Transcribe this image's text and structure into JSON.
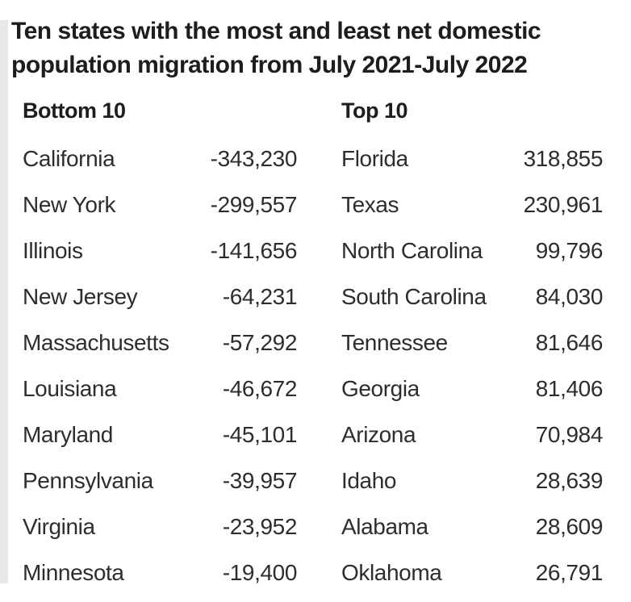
{
  "title": "Ten states with the most and least net domestic population migration from July 2021-July 2022",
  "table": {
    "left": {
      "header": "Bottom 10",
      "rows": [
        {
          "state": "California",
          "value": "-343,230"
        },
        {
          "state": "New York",
          "value": "-299,557"
        },
        {
          "state": "Illinois",
          "value": "-141,656"
        },
        {
          "state": "New Jersey",
          "value": "-64,231"
        },
        {
          "state": "Massachusetts",
          "value": "-57,292"
        },
        {
          "state": "Louisiana",
          "value": "-46,672"
        },
        {
          "state": "Maryland",
          "value": "-45,101"
        },
        {
          "state": "Pennsylvania",
          "value": "-39,957"
        },
        {
          "state": "Virginia",
          "value": "-23,952"
        },
        {
          "state": "Minnesota",
          "value": "-19,400"
        }
      ]
    },
    "right": {
      "header": "Top 10",
      "rows": [
        {
          "state": "Florida",
          "value": "318,855"
        },
        {
          "state": "Texas",
          "value": "230,961"
        },
        {
          "state": "North Carolina",
          "value": "99,796"
        },
        {
          "state": "South Carolina",
          "value": "84,030"
        },
        {
          "state": "Tennessee",
          "value": "81,646"
        },
        {
          "state": "Georgia",
          "value": "81,406"
        },
        {
          "state": "Arizona",
          "value": "70,984"
        },
        {
          "state": "Idaho",
          "value": "28,639"
        },
        {
          "state": "Alabama",
          "value": "28,609"
        },
        {
          "state": "Oklahoma",
          "value": "26,791"
        }
      ]
    }
  },
  "colors": {
    "background": "#ffffff",
    "left_strip": "#e9e8e8",
    "title_text": "#1d1d1d",
    "body_text": "#2d2d2d"
  },
  "chart_data": {
    "type": "table",
    "title": "Ten states with the most and least net domestic population migration from July 2021-July 2022",
    "columns": [
      "Bottom 10",
      "Top 10"
    ],
    "bottom_10": [
      [
        "California",
        -343230
      ],
      [
        "New York",
        -299557
      ],
      [
        "Illinois",
        -141656
      ],
      [
        "New Jersey",
        -64231
      ],
      [
        "Massachusetts",
        -57292
      ],
      [
        "Louisiana",
        -46672
      ],
      [
        "Maryland",
        -45101
      ],
      [
        "Pennsylvania",
        -39957
      ],
      [
        "Virginia",
        -23952
      ],
      [
        "Minnesota",
        -19400
      ]
    ],
    "top_10": [
      [
        "Florida",
        318855
      ],
      [
        "Texas",
        230961
      ],
      [
        "North Carolina",
        99796
      ],
      [
        "South Carolina",
        84030
      ],
      [
        "Tennessee",
        81646
      ],
      [
        "Georgia",
        81406
      ],
      [
        "Arizona",
        70984
      ],
      [
        "Idaho",
        28639
      ],
      [
        "Alabama",
        28609
      ],
      [
        "Oklahoma",
        26791
      ]
    ]
  }
}
